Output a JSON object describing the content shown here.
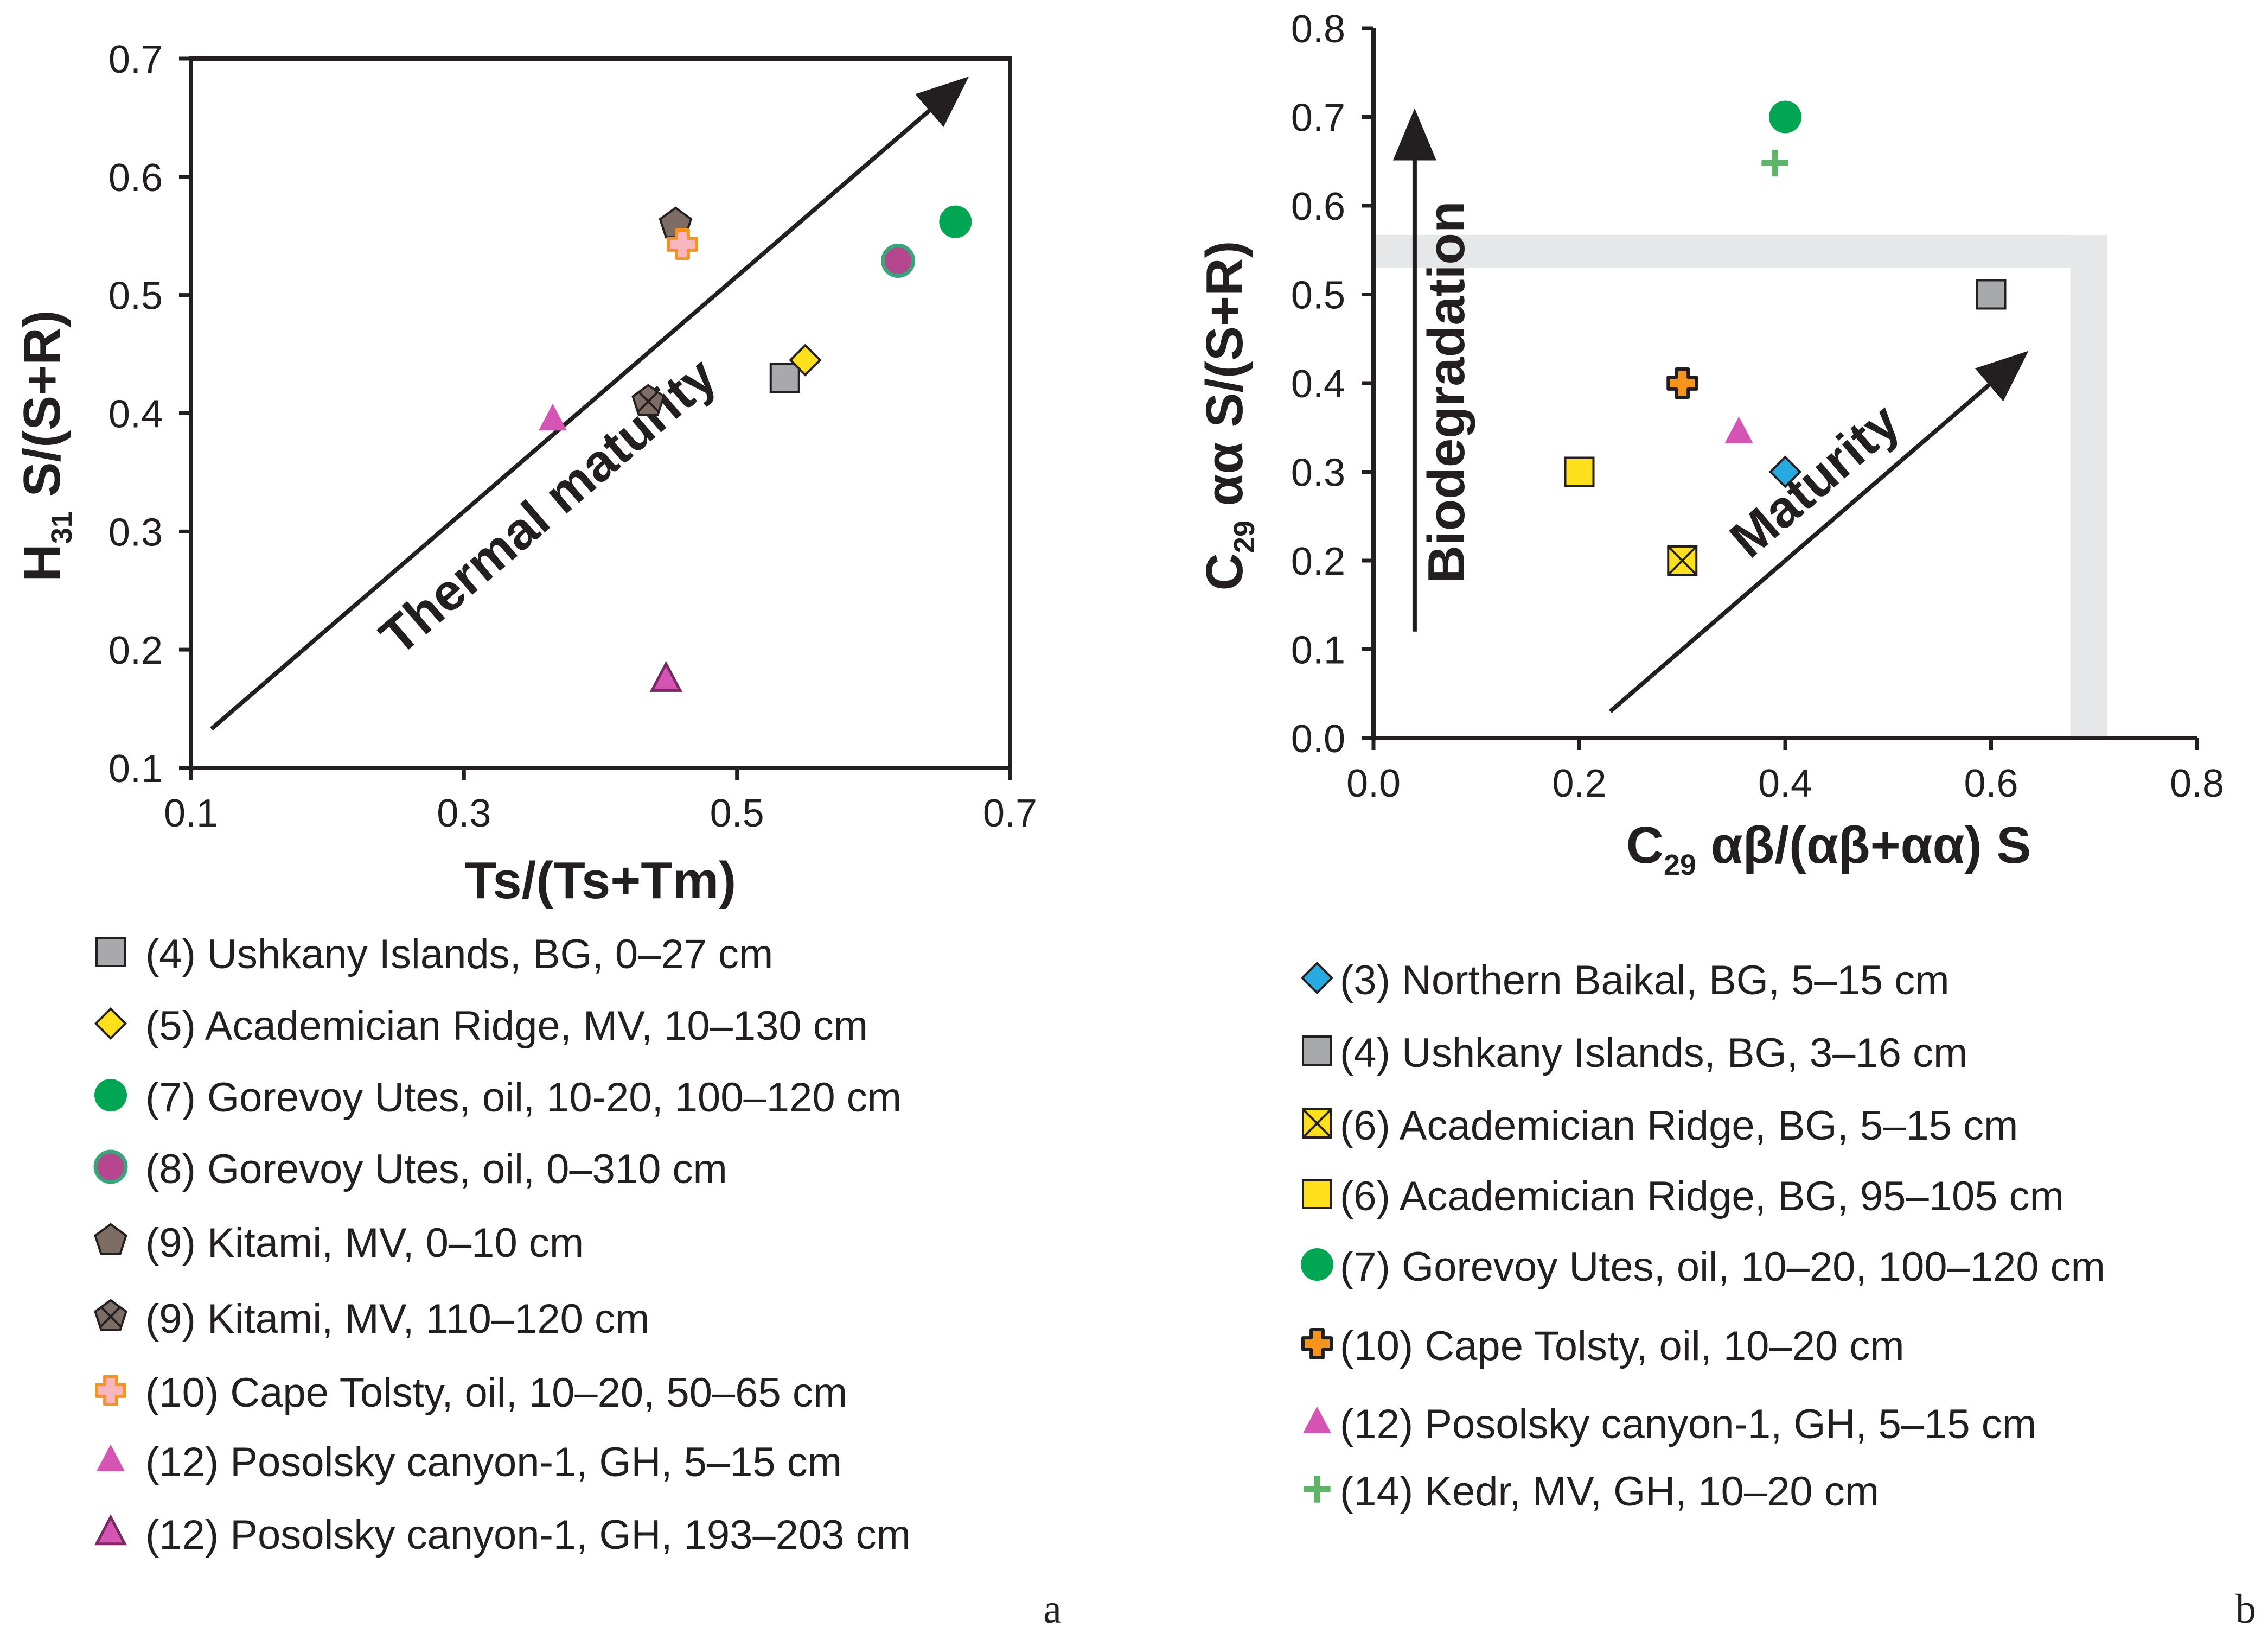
{
  "chart_data": [
    {
      "type": "scatter",
      "panel_label": "a",
      "xlabel": "Ts/(Ts+Tm)",
      "ylabel_parts": {
        "main": "H",
        "sub": "31",
        "rest": " S/(S+R)"
      },
      "xlim": [
        0.1,
        0.7
      ],
      "ylim": [
        0.1,
        0.7
      ],
      "xticks": [
        "0.1",
        "0.3",
        "0.5",
        "0.7"
      ],
      "yticks": [
        "0.1",
        "0.2",
        "0.3",
        "0.4",
        "0.5",
        "0.6",
        "0.7"
      ],
      "annotations": [
        {
          "text": "Thermal maturity",
          "type": "arrow",
          "from": [
            0.115,
            0.133
          ],
          "to": [
            0.665,
            0.68
          ]
        }
      ],
      "series": [
        {
          "name": "(4) Ushkany Islands, BG, 0–27 cm",
          "marker": "square",
          "color": "#a7a9ac",
          "points": [
            [
              0.535,
              0.43
            ]
          ]
        },
        {
          "name": "(5) Academician Ridge, MV, 10–130 cm",
          "marker": "diamond",
          "color": "#ffe01b",
          "points": [
            [
              0.55,
              0.445
            ]
          ]
        },
        {
          "name": "(7) Gorevoy Utes, oil, 10-20, 100–120 cm",
          "marker": "circle",
          "color": "#00a651",
          "points": [
            [
              0.66,
              0.562
            ]
          ]
        },
        {
          "name": "(8) Gorevoy Utes, oil, 0–310 cm",
          "marker": "circle-outlined",
          "color": "#b5478f",
          "stroke": "#3aa57a",
          "points": [
            [
              0.618,
              0.529
            ]
          ]
        },
        {
          "name": "(9) Kitami, MV, 0–10 cm",
          "marker": "pentagon",
          "color": "#7d6d65",
          "points": [
            [
              0.455,
              0.56
            ]
          ]
        },
        {
          "name": "(9) Kitami, MV, 110–120 cm",
          "marker": "pentagon-cross",
          "color": "#7d6d65",
          "points": [
            [
              0.435,
              0.41
            ]
          ]
        },
        {
          "name": "(10) Cape Tolsty, oil, 10–20, 50–65 cm",
          "marker": "cross-pink",
          "color": "#f8b6bf",
          "stroke": "#f7941d",
          "points": [
            [
              0.46,
              0.543
            ]
          ]
        },
        {
          "name": "(12) Posolsky canyon-1, GH, 5–15 cm",
          "marker": "triangle",
          "color": "#d455b3",
          "points": [
            [
              0.365,
              0.395
            ]
          ]
        },
        {
          "name": "(12) Posolsky canyon-1, GH, 193–203 cm",
          "marker": "triangle-outlined",
          "color": "#d455b3",
          "points": [
            [
              0.448,
              0.175
            ]
          ]
        }
      ]
    },
    {
      "type": "scatter",
      "panel_label": "b",
      "xlabel_parts": {
        "main": "C",
        "sub": "29",
        "rest": " αβ/(αβ+αα) S"
      },
      "ylabel_parts": {
        "main": "C",
        "sub": "29",
        "rest": " αα S/(S+R)"
      },
      "xlim": [
        0.0,
        0.8
      ],
      "ylim": [
        0.0,
        0.8
      ],
      "xticks": [
        "0.0",
        "0.2",
        "0.4",
        "0.6",
        "0.8"
      ],
      "yticks": [
        "0.0",
        "0.1",
        "0.2",
        "0.3",
        "0.4",
        "0.5",
        "0.6",
        "0.7",
        "0.8"
      ],
      "annotations": [
        {
          "text": "Biodegradation",
          "type": "arrow",
          "from": [
            0.04,
            0.12
          ],
          "to": [
            0.04,
            0.7
          ]
        },
        {
          "text": "Maturity",
          "type": "arrow",
          "from": [
            0.23,
            0.03
          ],
          "to": [
            0.63,
            0.43
          ]
        },
        {
          "type": "shaded-band",
          "color": "#e6e7e8",
          "x": [
            0.0,
            0.71
          ],
          "y": [
            0.53,
            0.567
          ],
          "corner_x": [
            0.677,
            0.713
          ],
          "corner_y": [
            0.0,
            0.567
          ]
        }
      ],
      "series": [
        {
          "name": "(3) Northern Baikal, BG, 5–15 cm",
          "marker": "diamond",
          "color": "#27a9e1",
          "points": [
            [
              0.4,
              0.3
            ]
          ]
        },
        {
          "name": "(4) Ushkany Islands, BG, 3–16 cm",
          "marker": "square",
          "color": "#a7a9ac",
          "points": [
            [
              0.6,
              0.5
            ]
          ]
        },
        {
          "name": "(6) Academician Ridge, BG, 5–15 cm",
          "marker": "square-x",
          "color": "#ffe01b",
          "points": [
            [
              0.3,
              0.2
            ]
          ]
        },
        {
          "name": "(6) Academician Ridge, BG, 95–105 cm",
          "marker": "square",
          "color": "#ffe01b",
          "points": [
            [
              0.2,
              0.3
            ]
          ]
        },
        {
          "name": "(7) Gorevoy Utes, oil, 10–20, 100–120 cm",
          "marker": "circle",
          "color": "#00a651",
          "points": [
            [
              0.4,
              0.7
            ]
          ]
        },
        {
          "name": "(10) Cape Tolsty, oil, 10–20 cm",
          "marker": "cross-orange",
          "color": "#f7941d",
          "points": [
            [
              0.3,
              0.4
            ]
          ]
        },
        {
          "name": "(12) Posolsky canyon-1, GH, 5–15 cm",
          "marker": "triangle",
          "color": "#d455b3",
          "points": [
            [
              0.355,
              0.345
            ]
          ]
        },
        {
          "name": "(14) Kedr, MV, GH, 10–20 cm",
          "marker": "plus",
          "color": "#5fb46a",
          "points": [
            [
              0.39,
              0.648
            ]
          ]
        }
      ]
    }
  ]
}
